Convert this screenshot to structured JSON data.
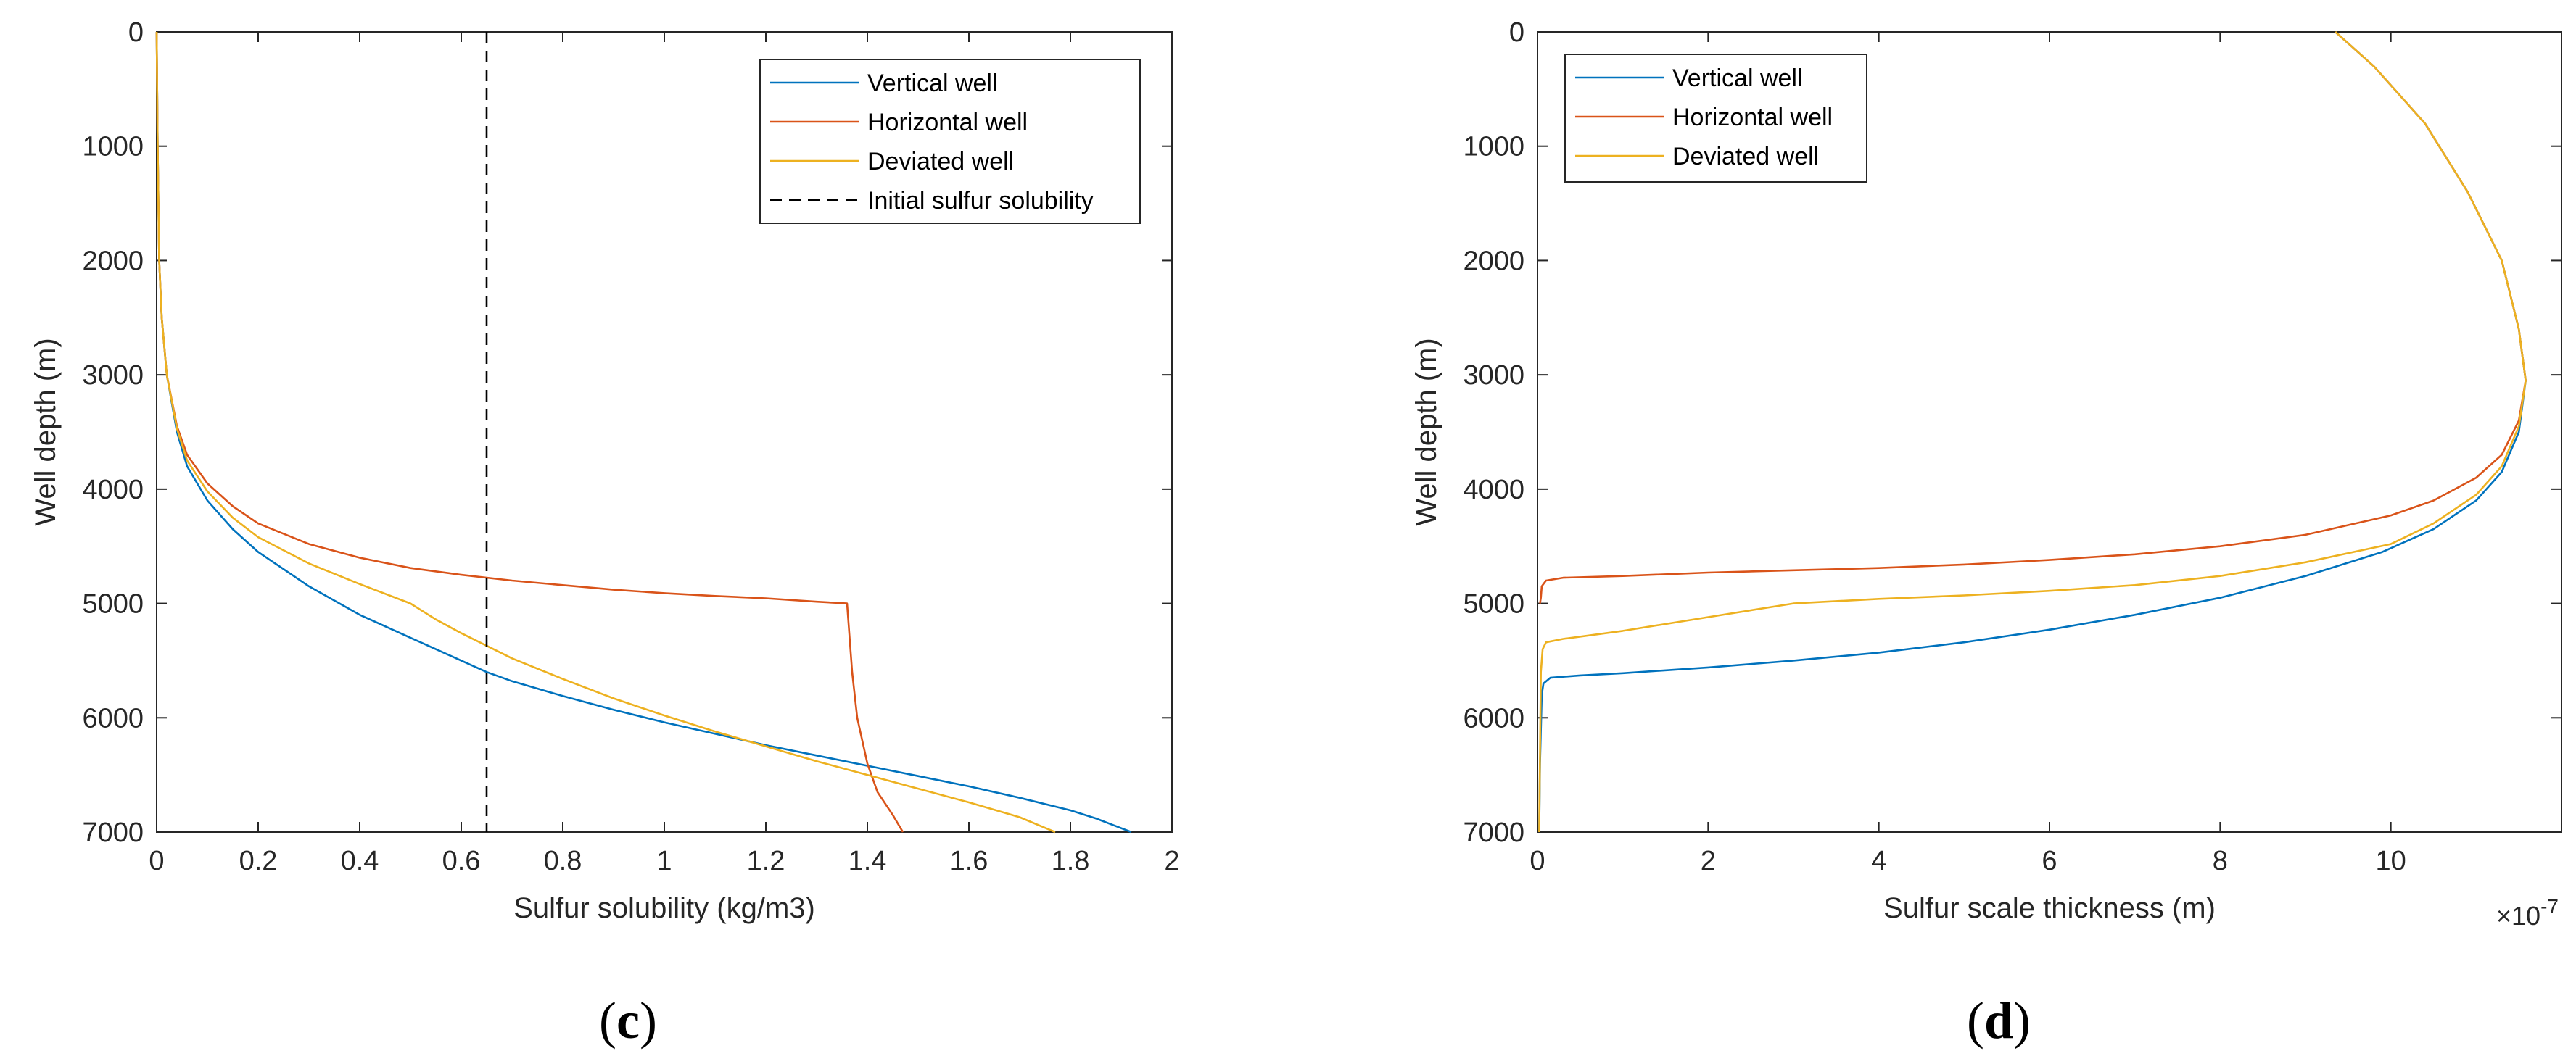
{
  "colors": {
    "vertical": "#0072BD",
    "horizontal": "#D95319",
    "deviated": "#EDB120",
    "reference": "#000000",
    "axis": "#262626"
  },
  "chart_data": [
    {
      "id": "c",
      "type": "line",
      "panel_label": "(c)",
      "panel_label_letter": "c",
      "xlabel": "Sulfur solubility (kg/m3)",
      "ylabel": "Well depth (m)",
      "xlim": [
        0,
        2
      ],
      "ylim": [
        0,
        7000
      ],
      "y_reversed": true,
      "xticks": [
        0,
        0.2,
        0.4,
        0.6,
        0.8,
        1,
        1.2,
        1.4,
        1.6,
        1.8,
        2
      ],
      "xtick_labels": [
        "0",
        "0.2",
        "0.4",
        "0.6",
        "0.8",
        "1",
        "1.2",
        "1.4",
        "1.6",
        "1.8",
        "2"
      ],
      "yticks": [
        0,
        1000,
        2000,
        3000,
        4000,
        5000,
        6000,
        7000
      ],
      "ytick_labels": [
        "0",
        "1000",
        "2000",
        "3000",
        "4000",
        "5000",
        "6000",
        "7000"
      ],
      "legend_position": "top-right",
      "series": [
        {
          "name": "Vertical well",
          "color_key": "vertical",
          "x": [
            0.0,
            0.002,
            0.005,
            0.01,
            0.02,
            0.04,
            0.06,
            0.1,
            0.15,
            0.2,
            0.3,
            0.4,
            0.5,
            0.6,
            0.65,
            0.7,
            0.8,
            0.9,
            1.0,
            1.1,
            1.2,
            1.3,
            1.4,
            1.5,
            1.6,
            1.7,
            1.8,
            1.85,
            1.92
          ],
          "y": [
            0,
            1000,
            2000,
            2500,
            3000,
            3500,
            3800,
            4100,
            4350,
            4550,
            4850,
            5100,
            5300,
            5500,
            5600,
            5680,
            5810,
            5930,
            6040,
            6140,
            6240,
            6330,
            6420,
            6510,
            6600,
            6700,
            6810,
            6880,
            7000
          ]
        },
        {
          "name": "Horizontal well",
          "color_key": "horizontal",
          "x": [
            0.0,
            0.002,
            0.005,
            0.01,
            0.02,
            0.04,
            0.06,
            0.1,
            0.15,
            0.2,
            0.3,
            0.4,
            0.5,
            0.6,
            0.7,
            0.8,
            0.9,
            1.0,
            1.1,
            1.2,
            1.3,
            1.36,
            1.365,
            1.37,
            1.38,
            1.4,
            1.42,
            1.45,
            1.47
          ],
          "y": [
            0,
            1000,
            2000,
            2500,
            3000,
            3450,
            3700,
            3950,
            4150,
            4300,
            4480,
            4600,
            4690,
            4750,
            4800,
            4840,
            4880,
            4910,
            4935,
            4955,
            4985,
            5000,
            5300,
            5600,
            6000,
            6400,
            6650,
            6850,
            7000
          ]
        },
        {
          "name": "Deviated well",
          "color_key": "deviated",
          "x": [
            0.0,
            0.002,
            0.005,
            0.01,
            0.02,
            0.04,
            0.06,
            0.1,
            0.15,
            0.2,
            0.3,
            0.4,
            0.5,
            0.55,
            0.6,
            0.65,
            0.7,
            0.8,
            0.9,
            1.0,
            1.1,
            1.2,
            1.3,
            1.4,
            1.5,
            1.6,
            1.7,
            1.77
          ],
          "y": [
            0,
            1000,
            2000,
            2500,
            3000,
            3470,
            3750,
            4020,
            4250,
            4420,
            4650,
            4830,
            5000,
            5140,
            5260,
            5370,
            5480,
            5660,
            5830,
            5980,
            6120,
            6250,
            6380,
            6500,
            6620,
            6740,
            6870,
            7000
          ]
        }
      ],
      "reference_line": {
        "name": "Initial sulfur solubility",
        "x": 0.65,
        "color_key": "reference"
      }
    },
    {
      "id": "d",
      "type": "line",
      "panel_label": "(d)",
      "panel_label_letter": "d",
      "xlabel": "Sulfur scale thickness (m)",
      "ylabel": "Well depth (m)",
      "x_exponent_label": "×10",
      "x_exponent": "-7",
      "xlim": [
        0,
        12
      ],
      "ylim": [
        0,
        7000
      ],
      "y_reversed": true,
      "xticks": [
        0,
        2,
        4,
        6,
        8,
        10
      ],
      "xtick_labels": [
        "0",
        "2",
        "4",
        "6",
        "8",
        "10"
      ],
      "yticks": [
        0,
        1000,
        2000,
        3000,
        4000,
        5000,
        6000,
        7000
      ],
      "ytick_labels": [
        "0",
        "1000",
        "2000",
        "3000",
        "4000",
        "5000",
        "6000",
        "7000"
      ],
      "legend_position": "top-left",
      "series": [
        {
          "name": "Vertical well",
          "color_key": "vertical",
          "x": [
            9.35,
            9.8,
            10.4,
            10.9,
            11.3,
            11.5,
            11.58,
            11.5,
            11.3,
            11.0,
            10.5,
            9.9,
            9.0,
            8.0,
            7.0,
            6.0,
            5.0,
            4.0,
            3.0,
            2.0,
            1.0,
            0.5,
            0.15,
            0.07,
            0.05,
            0.03,
            0.02
          ],
          "y": [
            0,
            300,
            800,
            1400,
            2000,
            2600,
            3050,
            3500,
            3850,
            4100,
            4350,
            4550,
            4760,
            4950,
            5100,
            5230,
            5340,
            5430,
            5500,
            5560,
            5610,
            5630,
            5650,
            5700,
            5800,
            6400,
            7000
          ]
        },
        {
          "name": "Horizontal well",
          "color_key": "horizontal",
          "x": [
            9.35,
            9.8,
            10.4,
            10.9,
            11.3,
            11.5,
            11.58,
            11.5,
            11.3,
            11.0,
            10.5,
            10.0,
            9.0,
            8.0,
            7.0,
            6.0,
            5.0,
            4.0,
            3.0,
            2.0,
            1.0,
            0.3,
            0.1,
            0.05,
            0.04,
            0.03
          ],
          "y": [
            0,
            300,
            800,
            1400,
            2000,
            2600,
            3050,
            3400,
            3700,
            3900,
            4100,
            4230,
            4400,
            4500,
            4570,
            4620,
            4660,
            4690,
            4710,
            4730,
            4760,
            4775,
            4800,
            4850,
            4950,
            5000
          ]
        },
        {
          "name": "Deviated well",
          "color_key": "deviated",
          "x": [
            9.35,
            9.8,
            10.4,
            10.9,
            11.3,
            11.5,
            11.58,
            11.5,
            11.3,
            11.0,
            10.5,
            10.0,
            9.0,
            8.0,
            7.0,
            6.0,
            5.0,
            4.0,
            3.0,
            2.0,
            1.0,
            0.3,
            0.1,
            0.06,
            0.04,
            0.03,
            0.02
          ],
          "y": [
            0,
            300,
            800,
            1400,
            2000,
            2600,
            3050,
            3450,
            3800,
            4050,
            4300,
            4480,
            4640,
            4760,
            4840,
            4890,
            4930,
            4960,
            5000,
            5120,
            5240,
            5310,
            5340,
            5400,
            5600,
            6300,
            7000
          ]
        }
      ]
    }
  ]
}
